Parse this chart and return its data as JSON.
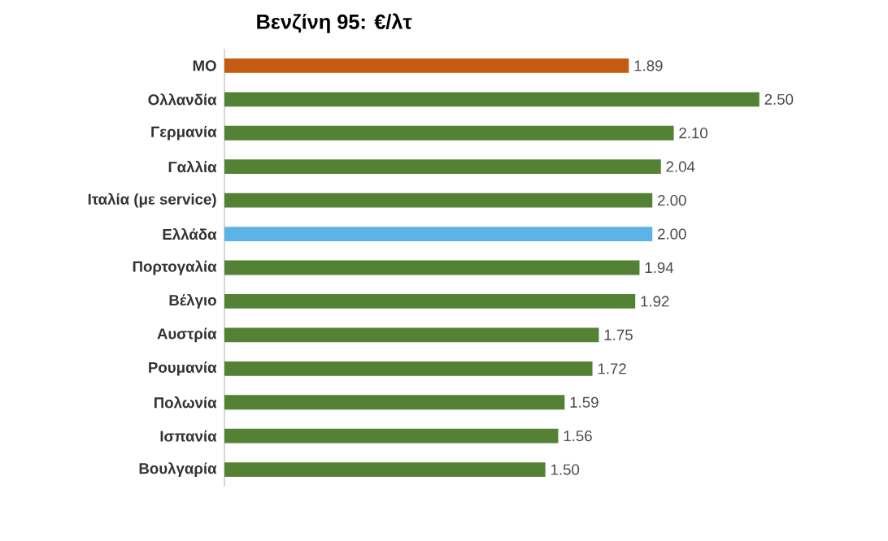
{
  "chart_data": {
    "type": "bar",
    "orientation": "horizontal",
    "title": "Βενζίνη 95: €/λτ",
    "categories": [
      "ΜΟ",
      "Ολλανδία",
      "Γερμανία",
      "Γαλλία",
      "Ιταλία (με service)",
      "Ελλάδα",
      "Πορτογαλία",
      "Βέλγιο",
      "Αυστρία",
      "Ρουμανία",
      "Πολωνία",
      "Ισπανία",
      "Βουλγαρία"
    ],
    "values": [
      1.89,
      2.5,
      2.1,
      2.04,
      2.0,
      2.0,
      1.94,
      1.92,
      1.75,
      1.72,
      1.59,
      1.56,
      1.5
    ],
    "value_labels": [
      "1.89",
      "2.50",
      "2.10",
      "2.04",
      "2.00",
      "2.00",
      "1.94",
      "1.92",
      "1.75",
      "1.72",
      "1.59",
      "1.56",
      "1.50"
    ],
    "colors": [
      "#c55a11",
      "#548235",
      "#548235",
      "#548235",
      "#548235",
      "#5bb4e5",
      "#548235",
      "#548235",
      "#548235",
      "#548235",
      "#548235",
      "#548235",
      "#548235"
    ]
  }
}
